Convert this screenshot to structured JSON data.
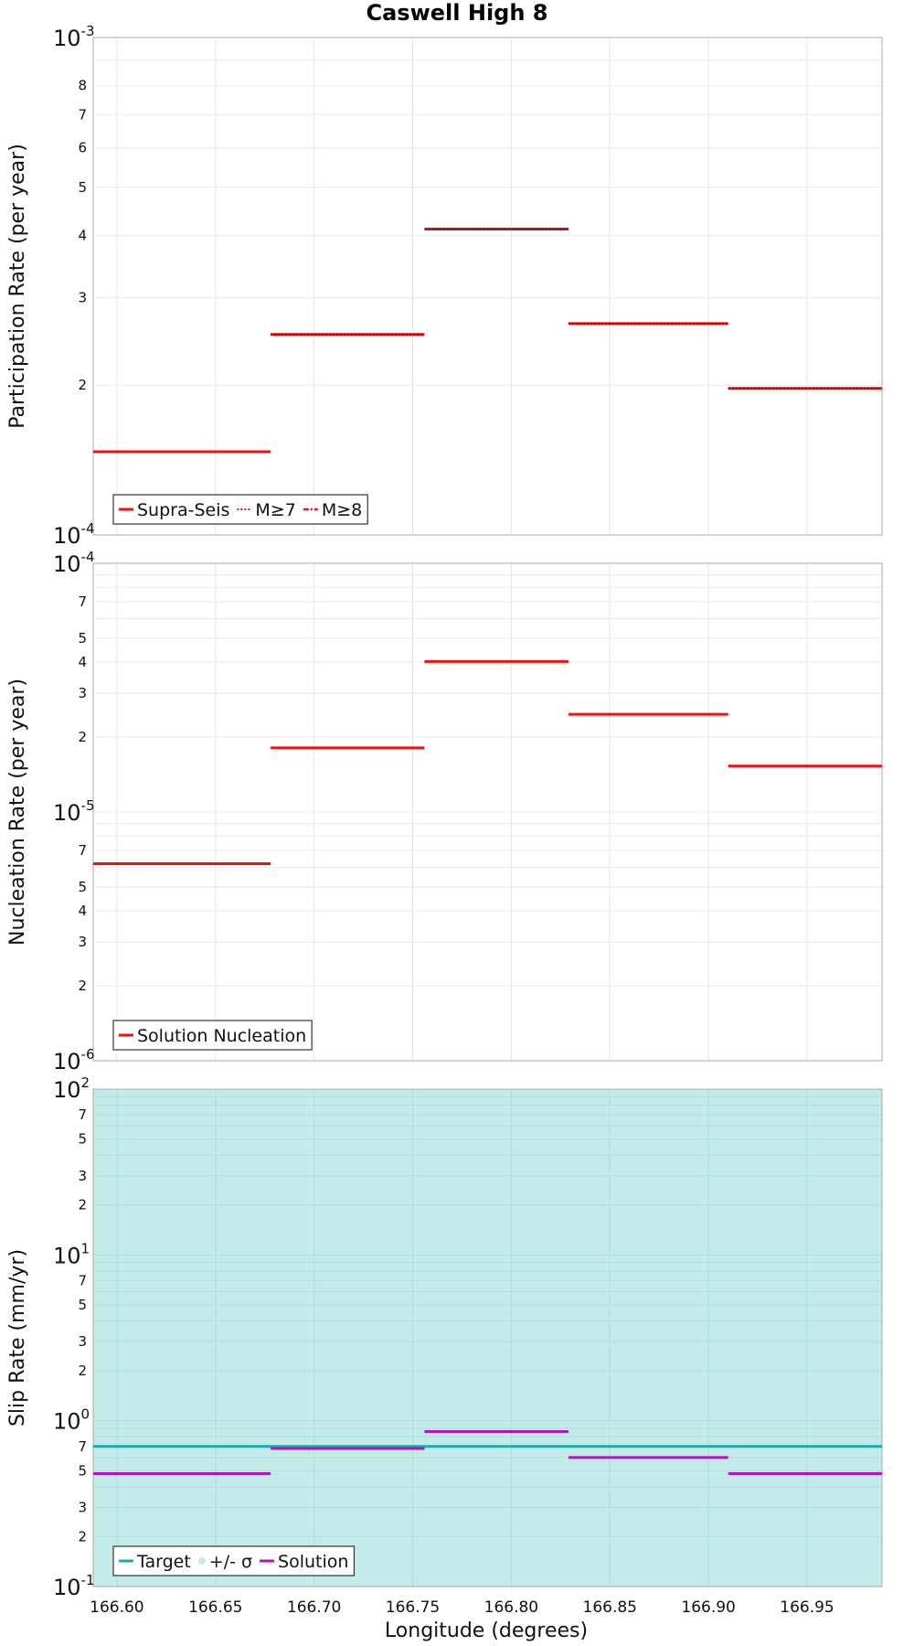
{
  "chart_data": {
    "title": "Caswell High 8",
    "type": "line",
    "xlabel": "Longitude (degrees)",
    "xlim": [
      166.588,
      166.988
    ],
    "xticks": [
      {
        "v": 166.6,
        "label": "166.60"
      },
      {
        "v": 166.65,
        "label": "166.65"
      },
      {
        "v": 166.7,
        "label": "166.70"
      },
      {
        "v": 166.75,
        "label": "166.75"
      },
      {
        "v": 166.8,
        "label": "166.80"
      },
      {
        "v": 166.85,
        "label": "166.85"
      },
      {
        "v": 166.9,
        "label": "166.90"
      },
      {
        "v": 166.95,
        "label": "166.95"
      }
    ],
    "panels": [
      {
        "id": "participation",
        "ylabel": "Participation Rate (per year)",
        "yscale": "log",
        "ylim": [
          0.0001,
          0.001
        ],
        "decades": [
          {
            "v": 0.0001,
            "base": "10",
            "exp": "-4"
          },
          {
            "v": 0.001,
            "base": "10",
            "exp": "-3"
          }
        ],
        "minor_ticks": [
          {
            "v": 0.0002,
            "label": "2"
          },
          {
            "v": 0.0003,
            "label": "3"
          },
          {
            "v": 0.0004,
            "label": "4"
          },
          {
            "v": 0.0005,
            "label": "5"
          },
          {
            "v": 0.0006,
            "label": "6"
          },
          {
            "v": 0.0007,
            "label": "7"
          },
          {
            "v": 0.0008,
            "label": "8"
          }
        ],
        "series": [
          {
            "name": "Supra-Seis",
            "color": "#ee1111",
            "style": "solid",
            "segments": [
              {
                "x0": 166.588,
                "x1": 166.678,
                "y": 0.000147
              },
              {
                "x0": 166.678,
                "x1": 166.756,
                "y": 0.000253
              },
              {
                "x0": 166.756,
                "x1": 166.829,
                "y": 0.000412
              },
              {
                "x0": 166.829,
                "x1": 166.91,
                "y": 0.000266
              },
              {
                "x0": 166.91,
                "x1": 166.988,
                "y": 0.000197
              }
            ]
          },
          {
            "name": "M≥7",
            "color": "#ee1111",
            "style": "dotted",
            "segments": [
              {
                "x0": 166.678,
                "x1": 166.756,
                "y": 0.000253
              },
              {
                "x0": 166.756,
                "x1": 166.829,
                "y": 0.000412
              },
              {
                "x0": 166.829,
                "x1": 166.91,
                "y": 0.000266
              },
              {
                "x0": 166.91,
                "x1": 166.988,
                "y": 0.000197
              }
            ]
          },
          {
            "name": "M≥8",
            "color": "#ee1111",
            "style": "dashdot",
            "segments": []
          }
        ],
        "legend": [
          {
            "label": "Supra-Seis",
            "style": "solid",
            "color": "#ee1111"
          },
          {
            "label": "M≥7",
            "style": "dotted",
            "color": "#ee1111"
          },
          {
            "label": "M≥8",
            "style": "dashdot",
            "color": "#ee1111"
          }
        ],
        "legend_position": "bottom-left"
      },
      {
        "id": "nucleation",
        "ylabel": "Nucleation Rate (per year)",
        "yscale": "log",
        "ylim": [
          1e-06,
          0.0001
        ],
        "decades": [
          {
            "v": 1e-06,
            "base": "10",
            "exp": "-6"
          },
          {
            "v": 1e-05,
            "base": "10",
            "exp": "-5"
          },
          {
            "v": 0.0001,
            "base": "10",
            "exp": "-4"
          }
        ],
        "minor_ticks": [
          {
            "v": 2e-06,
            "label": "2"
          },
          {
            "v": 3e-06,
            "label": "3"
          },
          {
            "v": 4e-06,
            "label": "4"
          },
          {
            "v": 5e-06,
            "label": "5"
          },
          {
            "v": 7e-06,
            "label": "7"
          },
          {
            "v": 2e-05,
            "label": "2"
          },
          {
            "v": 3e-05,
            "label": "3"
          },
          {
            "v": 4e-05,
            "label": "4"
          },
          {
            "v": 5e-05,
            "label": "5"
          },
          {
            "v": 7e-05,
            "label": "7"
          }
        ],
        "series": [
          {
            "name": "Solution Nucleation",
            "color": "#ee1111",
            "style": "solid",
            "segments": [
              {
                "x0": 166.588,
                "x1": 166.678,
                "y": 6.2e-06
              },
              {
                "x0": 166.678,
                "x1": 166.756,
                "y": 1.81e-05
              },
              {
                "x0": 166.756,
                "x1": 166.829,
                "y": 4.03e-05
              },
              {
                "x0": 166.829,
                "x1": 166.91,
                "y": 2.47e-05
              },
              {
                "x0": 166.91,
                "x1": 166.988,
                "y": 1.53e-05
              }
            ]
          }
        ],
        "legend": [
          {
            "label": "Solution Nucleation",
            "style": "solid",
            "color": "#ee1111"
          }
        ],
        "legend_position": "bottom-left"
      },
      {
        "id": "slip",
        "ylabel": "Slip Rate (mm/yr)",
        "yscale": "log",
        "ylim": [
          0.1,
          100
        ],
        "band": {
          "y0": 0.1,
          "y1": 100,
          "color": "#c2ebe9",
          "label": "+/- σ"
        },
        "decades": [
          {
            "v": 0.1,
            "base": "10",
            "exp": "-1"
          },
          {
            "v": 1,
            "base": "10",
            "exp": "0"
          },
          {
            "v": 10,
            "base": "10",
            "exp": "1"
          },
          {
            "v": 100,
            "base": "10",
            "exp": "2"
          }
        ],
        "minor_ticks": [
          {
            "v": 0.2,
            "label": "2"
          },
          {
            "v": 0.3,
            "label": "3"
          },
          {
            "v": 0.5,
            "label": "5"
          },
          {
            "v": 0.7,
            "label": "7"
          },
          {
            "v": 2,
            "label": "2"
          },
          {
            "v": 3,
            "label": "3"
          },
          {
            "v": 5,
            "label": "5"
          },
          {
            "v": 7,
            "label": "7"
          },
          {
            "v": 20,
            "label": "2"
          },
          {
            "v": 30,
            "label": "3"
          },
          {
            "v": 50,
            "label": "5"
          },
          {
            "v": 70,
            "label": "7"
          }
        ],
        "series": [
          {
            "name": "Target",
            "color": "#1aacac",
            "style": "solid",
            "segments": [
              {
                "x0": 166.588,
                "x1": 166.988,
                "y": 0.7
              }
            ]
          },
          {
            "name": "Solution",
            "color": "#b014c0",
            "style": "solid",
            "segments": [
              {
                "x0": 166.588,
                "x1": 166.678,
                "y": 0.48
              },
              {
                "x0": 166.678,
                "x1": 166.756,
                "y": 0.68
              },
              {
                "x0": 166.756,
                "x1": 166.829,
                "y": 0.86
              },
              {
                "x0": 166.829,
                "x1": 166.91,
                "y": 0.6
              },
              {
                "x0": 166.91,
                "x1": 166.988,
                "y": 0.48
              }
            ]
          }
        ],
        "legend": [
          {
            "label": "Target",
            "style": "solid",
            "color": "#1aacac"
          },
          {
            "label": "+/- σ",
            "style": "dot",
            "color": "#c2ebe9"
          },
          {
            "label": "Solution",
            "style": "solid",
            "color": "#b014c0"
          }
        ],
        "legend_position": "bottom-left"
      }
    ]
  }
}
